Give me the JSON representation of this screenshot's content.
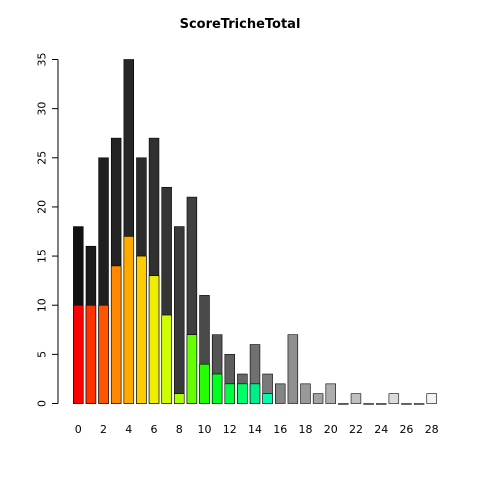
{
  "chart_data": {
    "type": "bar",
    "title": "ScoreTricheTotal",
    "xlabel": "",
    "ylabel": "",
    "ylim": [
      0,
      35
    ],
    "yticks": [
      0,
      5,
      10,
      15,
      20,
      25,
      30,
      35
    ],
    "xtick_labels": [
      "0",
      "2",
      "4",
      "6",
      "8",
      "10",
      "12",
      "14",
      "16",
      "18",
      "20",
      "22",
      "24",
      "26",
      "28"
    ],
    "categories": [
      "0",
      "1",
      "2",
      "3",
      "4",
      "5",
      "6",
      "7",
      "8",
      "9",
      "10",
      "11",
      "12",
      "13",
      "14",
      "15",
      "16",
      "17",
      "18",
      "19",
      "20",
      "21",
      "22",
      "23",
      "24",
      "25",
      "26",
      "27",
      "28"
    ],
    "series": [
      {
        "values": [
          18,
          16,
          25,
          27,
          35,
          25,
          27,
          22,
          18,
          21,
          11,
          7,
          5,
          3,
          6,
          3,
          2,
          7,
          2,
          1,
          2,
          0,
          1,
          0,
          0,
          1,
          0,
          0,
          1
        ],
        "colors": [
          "#111111",
          "#1a1a1a",
          "#1f1f1f",
          "#232323",
          "#272727",
          "#2c2c2c",
          "#303030",
          "#353535",
          "#3a3a3a",
          "#404040",
          "#4a4a4a",
          "#555555",
          "#5e5e5e",
          "#676767",
          "#707070",
          "#7a7a7a",
          "#858585",
          "#8f8f8f",
          "#999999",
          "#a3a3a3",
          "#adadad",
          "#b7b7b7",
          "#c0c0c0",
          "#c9c9c9",
          "#d2d2d2",
          "#dbdbdb",
          "#e3e3e3",
          "#ebebeb",
          "#f3f3f3"
        ]
      },
      {
        "values": [
          10,
          10,
          10,
          14,
          17,
          15,
          13,
          9,
          1,
          7,
          4,
          3,
          2,
          2,
          2,
          1,
          0,
          0,
          0,
          0,
          0,
          0,
          0,
          0,
          0,
          0,
          0,
          0,
          0
        ],
        "colors": [
          "#ff0000",
          "#ff3300",
          "#ff5500",
          "#ff8800",
          "#ffaa00",
          "#ffcc00",
          "#eeee00",
          "#ccff00",
          "#aaff00",
          "#66ff00",
          "#22ff00",
          "#00ff22",
          "#00ff44",
          "#00ff66",
          "#00ee88",
          "#00ffaa",
          "#888888",
          "#888888",
          "#888888",
          "#888888",
          "#888888",
          "#888888",
          "#888888",
          "#888888",
          "#888888",
          "#888888",
          "#888888",
          "#888888",
          "#888888"
        ]
      }
    ],
    "grid": false
  }
}
